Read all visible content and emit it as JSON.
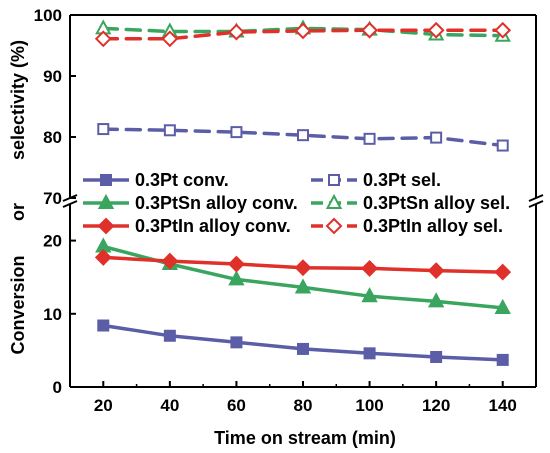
{
  "chart_data": {
    "type": "line",
    "xlabel": "Time on stream (min)",
    "ylabel_parts": [
      "Conversion",
      "or",
      "selectivity (%)"
    ],
    "x": [
      20,
      40,
      60,
      80,
      100,
      120,
      140
    ],
    "x_ticks": [
      "20",
      "40",
      "60",
      "80",
      "100",
      "120",
      "140"
    ],
    "xlim": [
      10,
      150
    ],
    "axis_break": true,
    "upper_panel": {
      "ylim": [
        70,
        100
      ],
      "y_ticks": [
        "70",
        "80",
        "90",
        "100"
      ]
    },
    "lower_panel": {
      "ylim": [
        0,
        25
      ],
      "y_ticks": [
        "0",
        "10",
        "20"
      ]
    },
    "series": [
      {
        "name": "0.3Pt conv.",
        "panel": "lower",
        "style": "solid",
        "marker": "square-filled",
        "color": "#5b5ea6",
        "values": [
          8.4,
          7.0,
          6.1,
          5.2,
          4.6,
          4.1,
          3.7
        ]
      },
      {
        "name": "0.3Pt sel.",
        "panel": "upper",
        "style": "dashed",
        "marker": "square-open",
        "color": "#5b5ea6",
        "values": [
          81.3,
          81.1,
          80.8,
          80.3,
          79.7,
          79.9,
          78.6
        ]
      },
      {
        "name": "0.3PtSn alloy conv.",
        "panel": "lower",
        "style": "solid",
        "marker": "triangle-filled",
        "color": "#3aa55e",
        "values": [
          19.2,
          16.8,
          14.7,
          13.6,
          12.4,
          11.7,
          10.8
        ]
      },
      {
        "name": "0.3PtSn alloy sel.",
        "panel": "upper",
        "style": "dashed",
        "marker": "triangle-open",
        "color": "#3aa55e",
        "values": [
          97.8,
          97.3,
          97.3,
          97.8,
          97.6,
          96.8,
          96.6
        ]
      },
      {
        "name": "0.3PtIn alloy conv.",
        "panel": "lower",
        "style": "solid",
        "marker": "diamond-filled",
        "color": "#e0302a",
        "values": [
          17.7,
          17.2,
          16.8,
          16.3,
          16.2,
          15.9,
          15.7
        ]
      },
      {
        "name": "0.3PtIn alloy sel.",
        "panel": "upper",
        "style": "dashed",
        "marker": "diamond-open",
        "color": "#e0302a",
        "values": [
          96.1,
          96.1,
          97.2,
          97.4,
          97.5,
          97.5,
          97.5
        ]
      }
    ],
    "legend": {
      "placement": "center",
      "columns": 2
    },
    "grid": false
  }
}
